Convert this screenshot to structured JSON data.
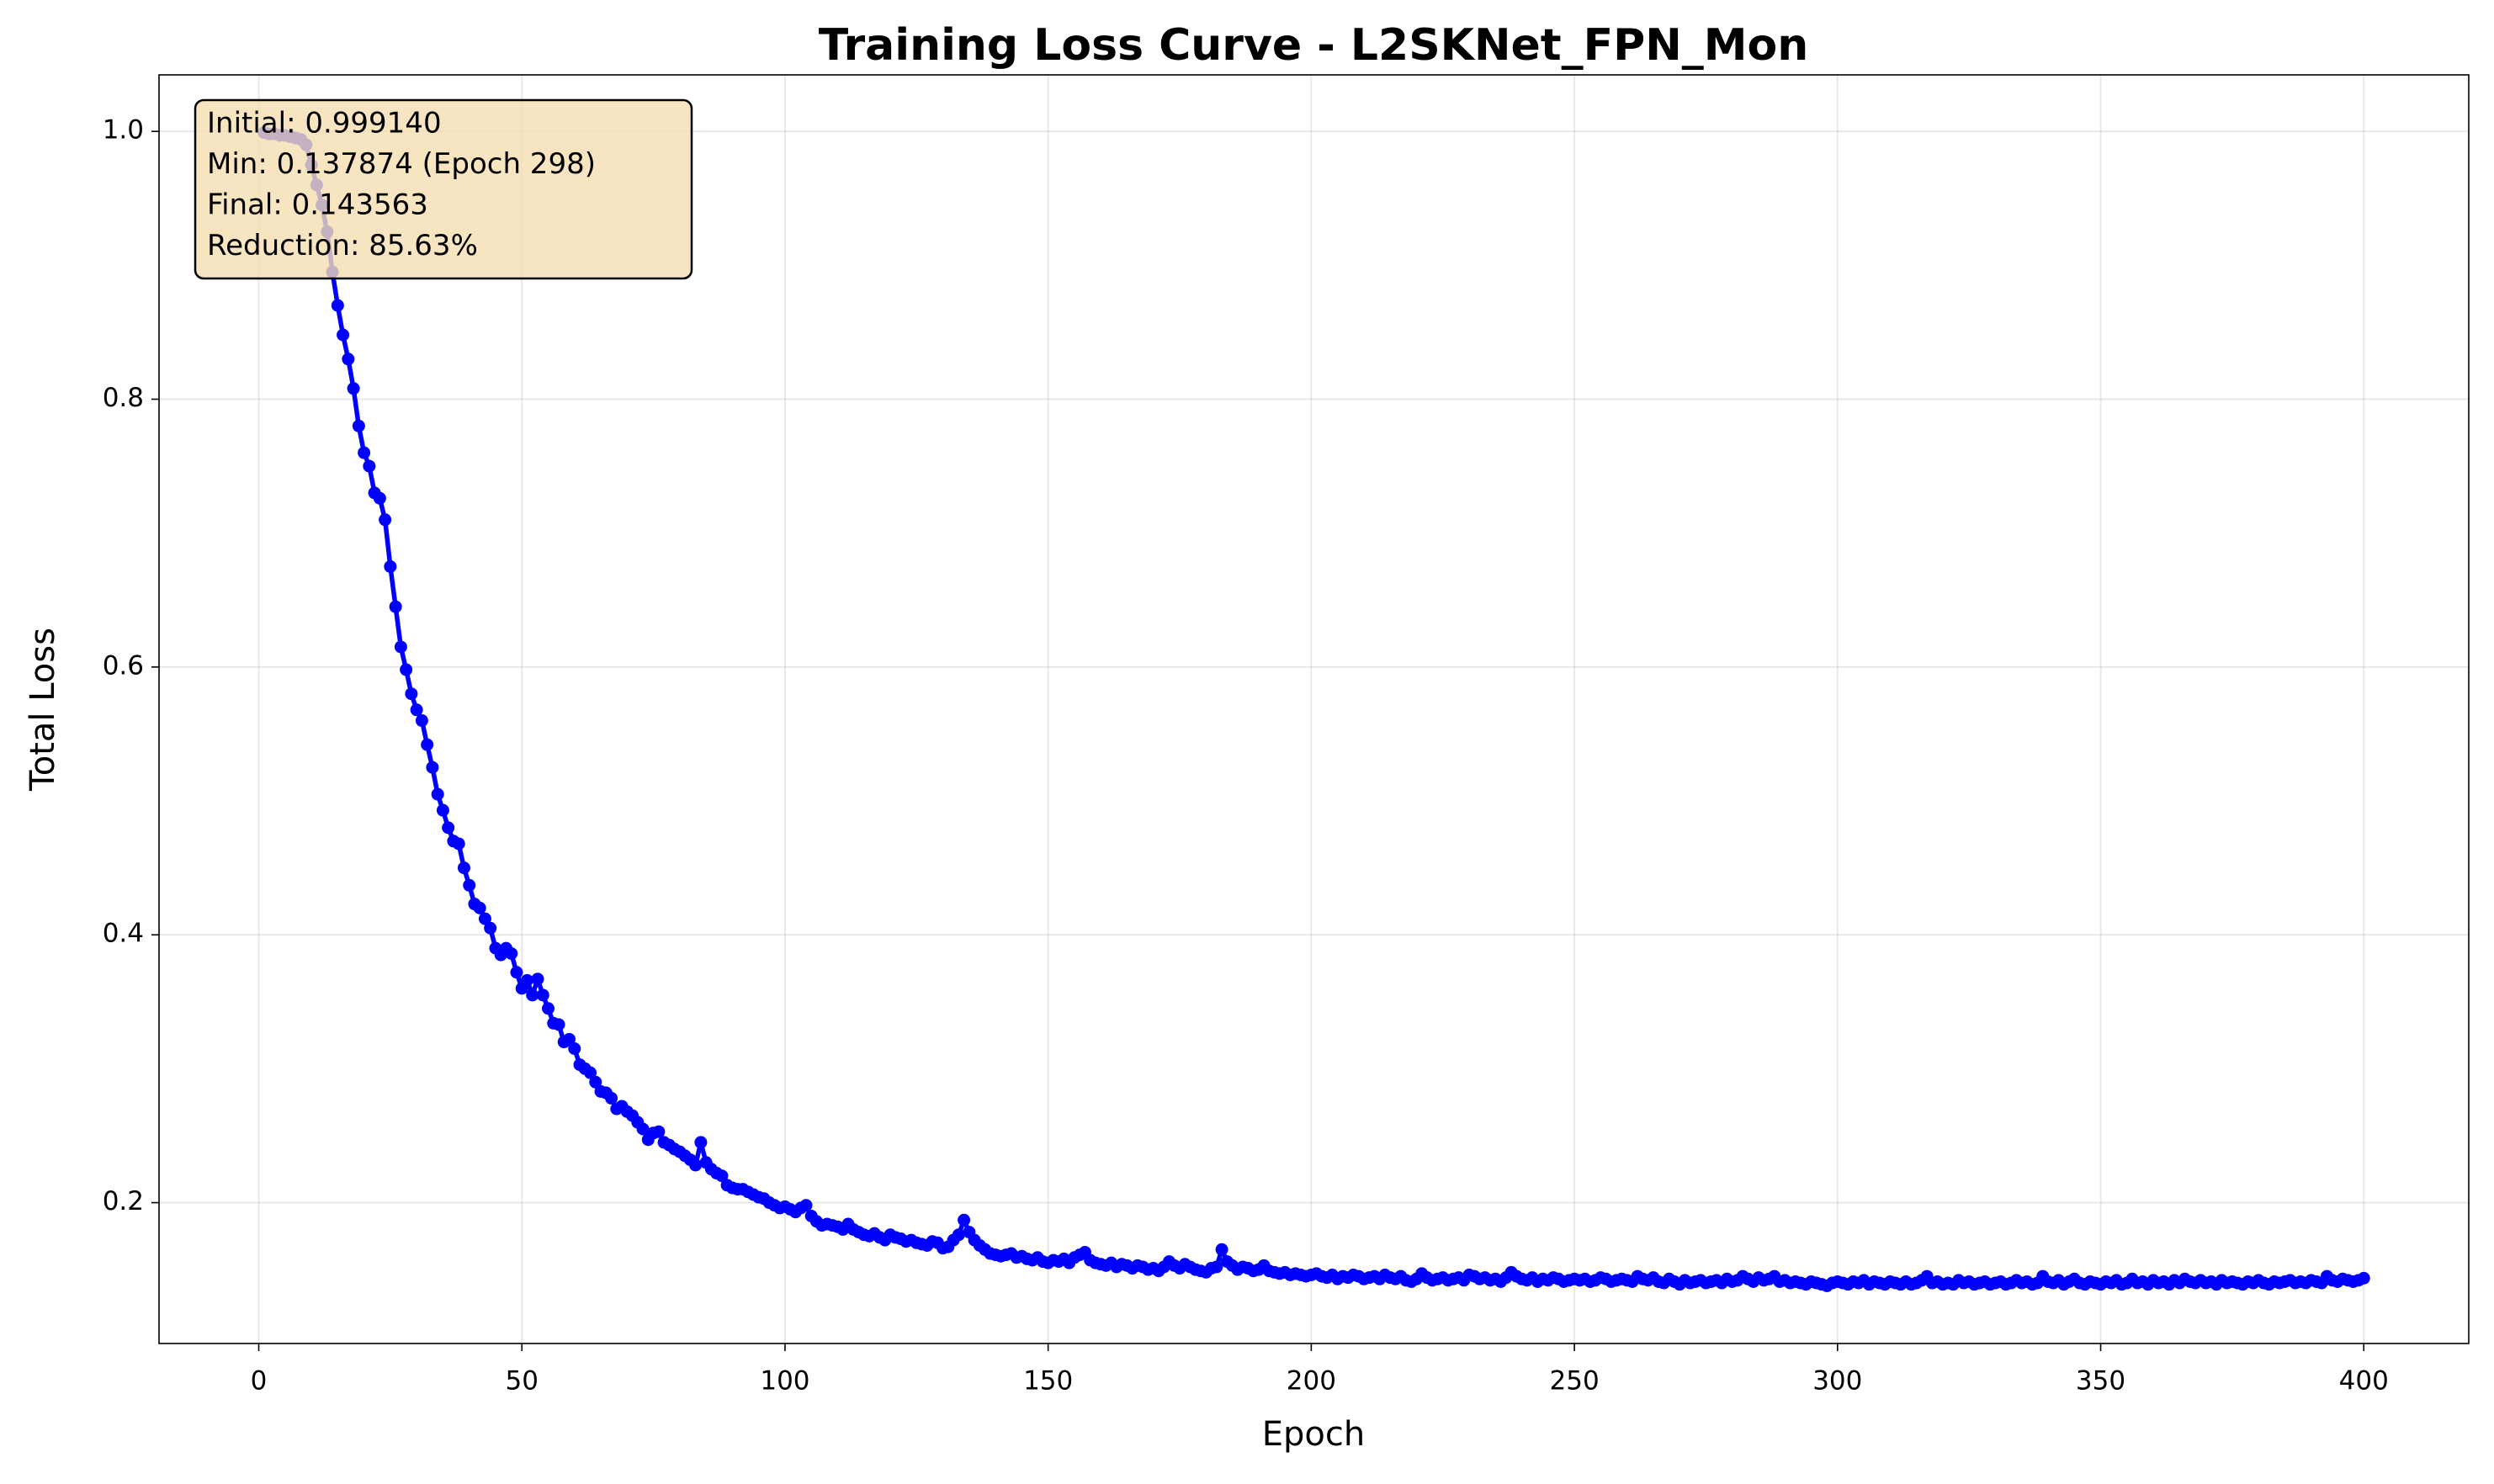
{
  "chart_data": {
    "type": "line",
    "title": "Training Loss Curve - L2SKNet_FPN_Mon",
    "xlabel": "Epoch",
    "ylabel": "Total Loss",
    "annotation": [
      "Initial: 0.999140",
      "Min: 0.137874 (Epoch 298)",
      "Final: 0.143563",
      "Reduction: 85.63%"
    ],
    "xlim": [
      -18.95,
      419.95
    ],
    "xticks": [
      0,
      50,
      100,
      150,
      200,
      250,
      300,
      350,
      400
    ],
    "ylim": [
      0.0948,
      1.0422
    ],
    "yticks": [
      0.2,
      0.4,
      0.6,
      0.8,
      {
        "value": 1,
        "label": "1.0"
      }
    ],
    "grid": true,
    "x": [
      1,
      2,
      3,
      4,
      5,
      6,
      7,
      8,
      9,
      10,
      11,
      12,
      13,
      14,
      15,
      16,
      17,
      18,
      19,
      20,
      21,
      22,
      23,
      24,
      25,
      26,
      27,
      28,
      29,
      30,
      31,
      32,
      33,
      34,
      35,
      36,
      37,
      38,
      39,
      40,
      41,
      42,
      43,
      44,
      45,
      46,
      47,
      48,
      49,
      50,
      51,
      52,
      53,
      54,
      55,
      56,
      57,
      58,
      59,
      60,
      61,
      62,
      63,
      64,
      65,
      66,
      67,
      68,
      69,
      70,
      71,
      72,
      73,
      74,
      75,
      76,
      77,
      78,
      79,
      80,
      81,
      82,
      83,
      84,
      85,
      86,
      87,
      88,
      89,
      90,
      91,
      92,
      93,
      94,
      95,
      96,
      97,
      98,
      99,
      100,
      101,
      102,
      103,
      104,
      105,
      106,
      107,
      108,
      109,
      110,
      111,
      112,
      113,
      114,
      115,
      116,
      117,
      118,
      119,
      120,
      121,
      122,
      123,
      124,
      125,
      126,
      127,
      128,
      129,
      130,
      131,
      132,
      133,
      134,
      135,
      136,
      137,
      138,
      139,
      140,
      141,
      142,
      143,
      144,
      145,
      146,
      147,
      148,
      149,
      150,
      151,
      152,
      153,
      154,
      155,
      156,
      157,
      158,
      159,
      160,
      161,
      162,
      163,
      164,
      165,
      166,
      167,
      168,
      169,
      170,
      171,
      172,
      173,
      174,
      175,
      176,
      177,
      178,
      179,
      180,
      181,
      182,
      183,
      184,
      185,
      186,
      187,
      188,
      189,
      190,
      191,
      192,
      193,
      194,
      195,
      196,
      197,
      198,
      199,
      200,
      201,
      202,
      203,
      204,
      205,
      206,
      207,
      208,
      209,
      210,
      211,
      212,
      213,
      214,
      215,
      216,
      217,
      218,
      219,
      220,
      221,
      222,
      223,
      224,
      225,
      226,
      227,
      228,
      229,
      230,
      231,
      232,
      233,
      234,
      235,
      236,
      237,
      238,
      239,
      240,
      241,
      242,
      243,
      244,
      245,
      246,
      247,
      248,
      249,
      250,
      251,
      252,
      253,
      254,
      255,
      256,
      257,
      258,
      259,
      260,
      261,
      262,
      263,
      264,
      265,
      266,
      267,
      268,
      269,
      270,
      271,
      272,
      273,
      274,
      275,
      276,
      277,
      278,
      279,
      280,
      281,
      282,
      283,
      284,
      285,
      286,
      287,
      288,
      289,
      290,
      291,
      292,
      293,
      294,
      295,
      296,
      297,
      298,
      299,
      300,
      301,
      302,
      303,
      304,
      305,
      306,
      307,
      308,
      309,
      310,
      311,
      312,
      313,
      314,
      315,
      316,
      317,
      318,
      319,
      320,
      321,
      322,
      323,
      324,
      325,
      326,
      327,
      328,
      329,
      330,
      331,
      332,
      333,
      334,
      335,
      336,
      337,
      338,
      339,
      340,
      341,
      342,
      343,
      344,
      345,
      346,
      347,
      348,
      349,
      350,
      351,
      352,
      353,
      354,
      355,
      356,
      357,
      358,
      359,
      360,
      361,
      362,
      363,
      364,
      365,
      366,
      367,
      368,
      369,
      370,
      371,
      372,
      373,
      374,
      375,
      376,
      377,
      378,
      379,
      380,
      381,
      382,
      383,
      384,
      385,
      386,
      387,
      388,
      389,
      390,
      391,
      392,
      393,
      394,
      395,
      396,
      397,
      398,
      399,
      400
    ],
    "series": [
      {
        "color": "#0000ff",
        "values": [
          0.99914,
          0.998,
          0.998,
          0.997,
          0.997,
          0.996,
          0.995,
          0.994,
          0.99,
          0.975,
          0.96,
          0.945,
          0.925,
          0.895,
          0.87,
          0.848,
          0.83,
          0.808,
          0.78,
          0.76,
          0.75,
          0.73,
          0.726,
          0.71,
          0.675,
          0.645,
          0.615,
          0.598,
          0.58,
          0.568,
          0.56,
          0.542,
          0.525,
          0.505,
          0.493,
          0.48,
          0.47,
          0.468,
          0.45,
          0.437,
          0.423,
          0.42,
          0.412,
          0.405,
          0.39,
          0.385,
          0.39,
          0.386,
          0.372,
          0.36,
          0.366,
          0.355,
          0.367,
          0.355,
          0.345,
          0.334,
          0.333,
          0.32,
          0.322,
          0.315,
          0.303,
          0.3,
          0.297,
          0.29,
          0.283,
          0.282,
          0.278,
          0.27,
          0.272,
          0.268,
          0.265,
          0.26,
          0.255,
          0.247,
          0.252,
          0.253,
          0.245,
          0.243,
          0.24,
          0.238,
          0.235,
          0.232,
          0.228,
          0.245,
          0.23,
          0.225,
          0.222,
          0.22,
          0.213,
          0.211,
          0.21,
          0.21,
          0.208,
          0.206,
          0.204,
          0.203,
          0.2,
          0.198,
          0.196,
          0.197,
          0.195,
          0.193,
          0.196,
          0.198,
          0.19,
          0.186,
          0.183,
          0.184,
          0.183,
          0.182,
          0.18,
          0.184,
          0.18,
          0.178,
          0.176,
          0.175,
          0.177,
          0.174,
          0.172,
          0.176,
          0.174,
          0.173,
          0.171,
          0.172,
          0.17,
          0.169,
          0.168,
          0.171,
          0.17,
          0.166,
          0.167,
          0.172,
          0.176,
          0.187,
          0.178,
          0.172,
          0.168,
          0.165,
          0.162,
          0.161,
          0.16,
          0.161,
          0.162,
          0.159,
          0.16,
          0.158,
          0.157,
          0.159,
          0.156,
          0.155,
          0.157,
          0.156,
          0.158,
          0.155,
          0.159,
          0.161,
          0.163,
          0.157,
          0.155,
          0.154,
          0.153,
          0.155,
          0.152,
          0.154,
          0.153,
          0.151,
          0.153,
          0.152,
          0.15,
          0.151,
          0.149,
          0.152,
          0.156,
          0.153,
          0.151,
          0.154,
          0.152,
          0.15,
          0.149,
          0.148,
          0.151,
          0.152,
          0.165,
          0.156,
          0.153,
          0.15,
          0.152,
          0.151,
          0.149,
          0.15,
          0.153,
          0.149,
          0.148,
          0.147,
          0.148,
          0.146,
          0.147,
          0.146,
          0.145,
          0.146,
          0.147,
          0.145,
          0.144,
          0.146,
          0.143,
          0.145,
          0.144,
          0.146,
          0.145,
          0.143,
          0.144,
          0.145,
          0.143,
          0.146,
          0.144,
          0.143,
          0.145,
          0.142,
          0.141,
          0.143,
          0.147,
          0.144,
          0.142,
          0.143,
          0.144,
          0.142,
          0.143,
          0.144,
          0.142,
          0.146,
          0.145,
          0.143,
          0.144,
          0.142,
          0.143,
          0.141,
          0.144,
          0.148,
          0.145,
          0.143,
          0.142,
          0.144,
          0.141,
          0.143,
          0.142,
          0.144,
          0.143,
          0.141,
          0.142,
          0.143,
          0.142,
          0.143,
          0.141,
          0.142,
          0.144,
          0.143,
          0.141,
          0.142,
          0.143,
          0.142,
          0.141,
          0.145,
          0.143,
          0.142,
          0.144,
          0.141,
          0.14,
          0.143,
          0.141,
          0.139,
          0.142,
          0.14,
          0.141,
          0.142,
          0.14,
          0.141,
          0.142,
          0.14,
          0.143,
          0.141,
          0.142,
          0.145,
          0.143,
          0.141,
          0.144,
          0.142,
          0.143,
          0.145,
          0.141,
          0.142,
          0.14,
          0.141,
          0.14,
          0.139,
          0.141,
          0.14,
          0.139,
          0.137874,
          0.14,
          0.141,
          0.14,
          0.139,
          0.141,
          0.14,
          0.142,
          0.139,
          0.141,
          0.14,
          0.139,
          0.141,
          0.14,
          0.139,
          0.141,
          0.139,
          0.14,
          0.142,
          0.145,
          0.14,
          0.141,
          0.139,
          0.14,
          0.139,
          0.142,
          0.14,
          0.141,
          0.139,
          0.14,
          0.141,
          0.139,
          0.14,
          0.141,
          0.139,
          0.14,
          0.142,
          0.14,
          0.141,
          0.139,
          0.14,
          0.145,
          0.141,
          0.14,
          0.142,
          0.139,
          0.141,
          0.143,
          0.14,
          0.139,
          0.141,
          0.14,
          0.139,
          0.141,
          0.14,
          0.142,
          0.139,
          0.14,
          0.143,
          0.14,
          0.141,
          0.139,
          0.142,
          0.14,
          0.141,
          0.139,
          0.142,
          0.14,
          0.143,
          0.141,
          0.14,
          0.142,
          0.14,
          0.141,
          0.139,
          0.142,
          0.14,
          0.141,
          0.14,
          0.139,
          0.141,
          0.14,
          0.142,
          0.14,
          0.139,
          0.141,
          0.14,
          0.141,
          0.142,
          0.14,
          0.141,
          0.14,
          0.142,
          0.141,
          0.14,
          0.145,
          0.142,
          0.141,
          0.143,
          0.142,
          0.141,
          0.142,
          0.143563
        ]
      }
    ]
  }
}
